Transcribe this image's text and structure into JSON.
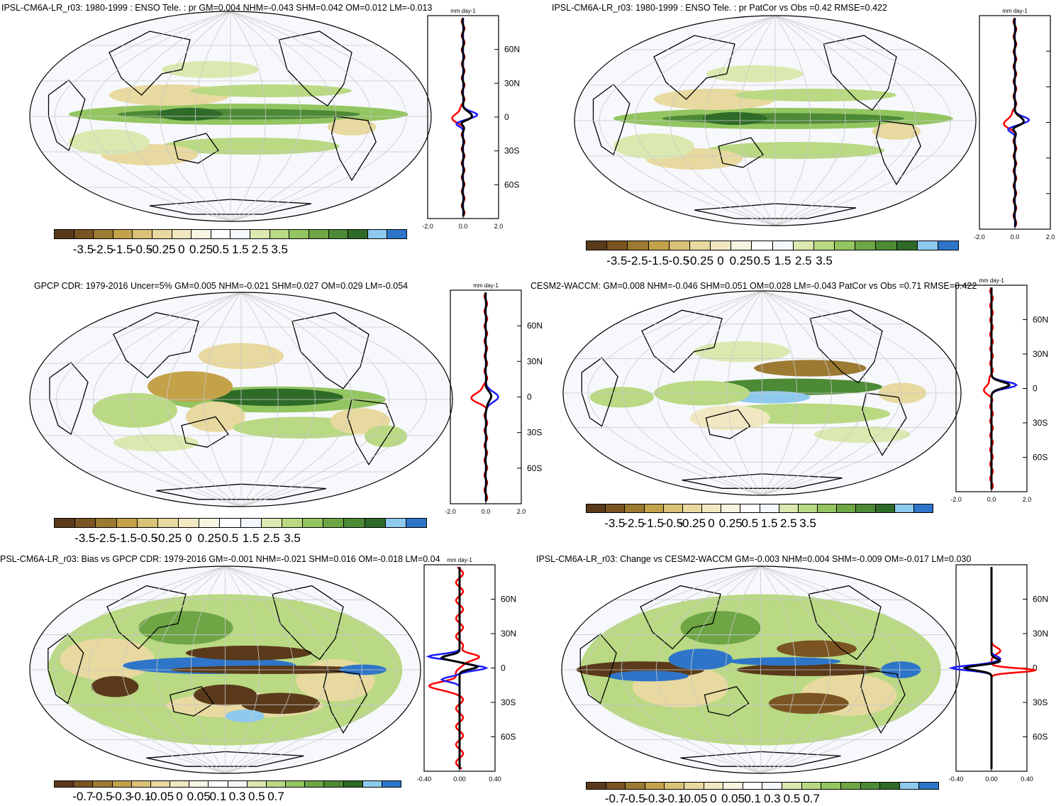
{
  "colors": {
    "palette": [
      "#5a3a1a",
      "#7a5422",
      "#9c7a32",
      "#c4a24a",
      "#d9c278",
      "#e8d9a0",
      "#f1e8c2",
      "#f7f4e2",
      "#ffffff",
      "#f4f8fc",
      "#dbe9b0",
      "#b9d983",
      "#93c560",
      "#6ea545",
      "#4d8a36",
      "#2f6b28",
      "#8ec9ee",
      "#2e75c9"
    ],
    "model_line": "#ff0000",
    "obs_line": "#1c1cff",
    "ref_line": "#000000"
  },
  "panels": [
    {
      "id": "model",
      "title": "IPSL-CM6A-LR_r03: 1980-1999 : ENSO Tele. : pr GM=0.004 NHM=-0.043 SHM=0.042 OM=0.012 LM=-0.013",
      "colorbar_labels": [
        "-3.5",
        "-2.5",
        "-1.5",
        "-0.5",
        "-0.25",
        "0",
        "0.25",
        "0.5",
        "1.5",
        "2.5",
        "3.5"
      ],
      "profile": {
        "unit": "mm day-1",
        "lat_labels": [
          "60N",
          "30N",
          "0",
          "30S",
          "60S"
        ],
        "x_ticks": [
          "-2.0",
          "0.0",
          "2.0"
        ]
      }
    },
    {
      "id": "model-patcor",
      "title": "IPSL-CM6A-LR_r03: 1980-1999 : ENSO Tele. : pr PatCor vs Obs =0.42 RMSE=0.422",
      "colorbar_labels": [
        "-3.5",
        "-2.5",
        "-1.5",
        "-0.5",
        "-0.25",
        "0",
        "0.25",
        "0.5",
        "1.5",
        "2.5",
        "3.5"
      ],
      "profile": {
        "unit": "mm day-1",
        "lat_labels": [],
        "x_ticks": [
          "-2.0",
          "0.0",
          "2.0"
        ]
      }
    },
    {
      "id": "obs",
      "title": "GPCP CDR: 1979-2016 Uncer=5% GM=0.005 NHM=-0.021 SHM=0.027 OM=0.029 LM=-0.054",
      "colorbar_labels": [
        "-3.5",
        "-2.5",
        "-1.5",
        "-0.5",
        "-0.25",
        "0",
        "0.25",
        "0.5",
        "1.5",
        "2.5",
        "3.5"
      ],
      "profile": {
        "unit": "mm day-1",
        "lat_labels": [
          "60N",
          "30N",
          "0",
          "30S",
          "60S"
        ],
        "x_ticks": [
          "-2.0",
          "0.0",
          "2.0"
        ]
      }
    },
    {
      "id": "ref",
      "title": "CESM2-WACCM: GM=0.008 NHM=-0.046 SHM=0.051 OM=0.028 LM=-0.043 PatCor vs Obs =0.71 RMSE=0.422",
      "colorbar_labels": [
        "-3.5",
        "-2.5",
        "-1.5",
        "-0.5",
        "-0.25",
        "0",
        "0.25",
        "0.5",
        "1.5",
        "2.5",
        "3.5"
      ],
      "profile": {
        "unit": "mm day-1",
        "lat_labels": [
          "60N",
          "30N",
          "0",
          "30S",
          "60S"
        ],
        "x_ticks": [
          "-2.0",
          "0.0",
          "2.0"
        ]
      }
    },
    {
      "id": "bias",
      "title": "PSL-CM6A-LR_r03: Bias vs GPCP CDR: 1979-2016 GM=-0.001 NHM=-0.021 SHM=0.016 OM=-0.018 LM=0.04",
      "colorbar_labels": [
        "-0.7",
        "-0.5",
        "-0.3",
        "-0.1",
        "-0.05",
        "0",
        "0.05",
        "0.1",
        "0.3",
        "0.5",
        "0.7"
      ],
      "profile": {
        "unit": "mm day-1",
        "lat_labels": [
          "60N",
          "30N",
          "0",
          "30S",
          "60S"
        ],
        "x_ticks": [
          "-0.40",
          "0.00",
          "0.40"
        ]
      }
    },
    {
      "id": "change",
      "title": "IPSL-CM6A-LR_r03: Change vs CESM2-WACCM GM=-0.003 NHM=0.004 SHM=-0.009 OM=-0.017 LM=0.030",
      "colorbar_labels": [
        "-0.7",
        "-0.5",
        "-0.3",
        "-0.1",
        "-0.05",
        "0",
        "0.05",
        "0.1",
        "0.3",
        "0.5",
        "0.7"
      ],
      "profile": {
        "unit": "",
        "lat_labels": [
          "60N",
          "30N",
          "0",
          "30S",
          "60S"
        ],
        "x_ticks": [
          "-0.40",
          "0.00",
          "0.40"
        ]
      }
    }
  ]
}
